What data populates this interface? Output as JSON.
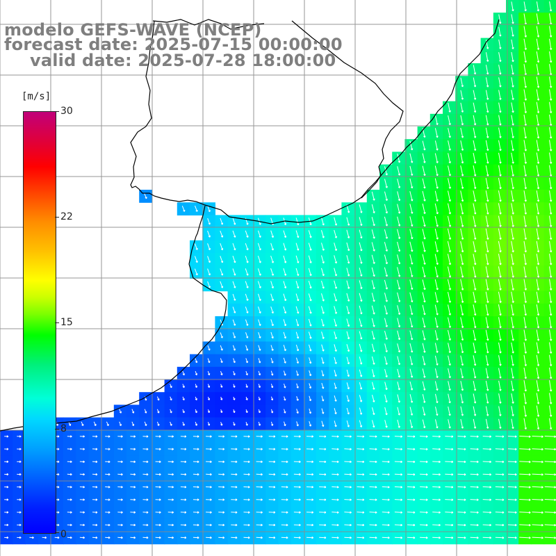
{
  "title": {
    "line1": "modelo GEFS-WAVE (NCEP)",
    "line2": "forecast date: 2025-07-15 00:00:00",
    "line3": "valid date: 2025-07-28 18:00:00"
  },
  "colorbar": {
    "unit": "[m/s]",
    "ticks": [
      "30",
      "22",
      "15",
      "8",
      "0"
    ],
    "range": [
      0,
      30
    ]
  },
  "colors": {
    "background": "#ffffff",
    "title_gray": "#7f7f7f",
    "coastline": "#000000",
    "grid": "#808080",
    "arrows": "#ffffff"
  },
  "map": {
    "field": "wind speed and direction",
    "grid_lines": true,
    "arrow_icon": "wind-arrow-icon"
  }
}
